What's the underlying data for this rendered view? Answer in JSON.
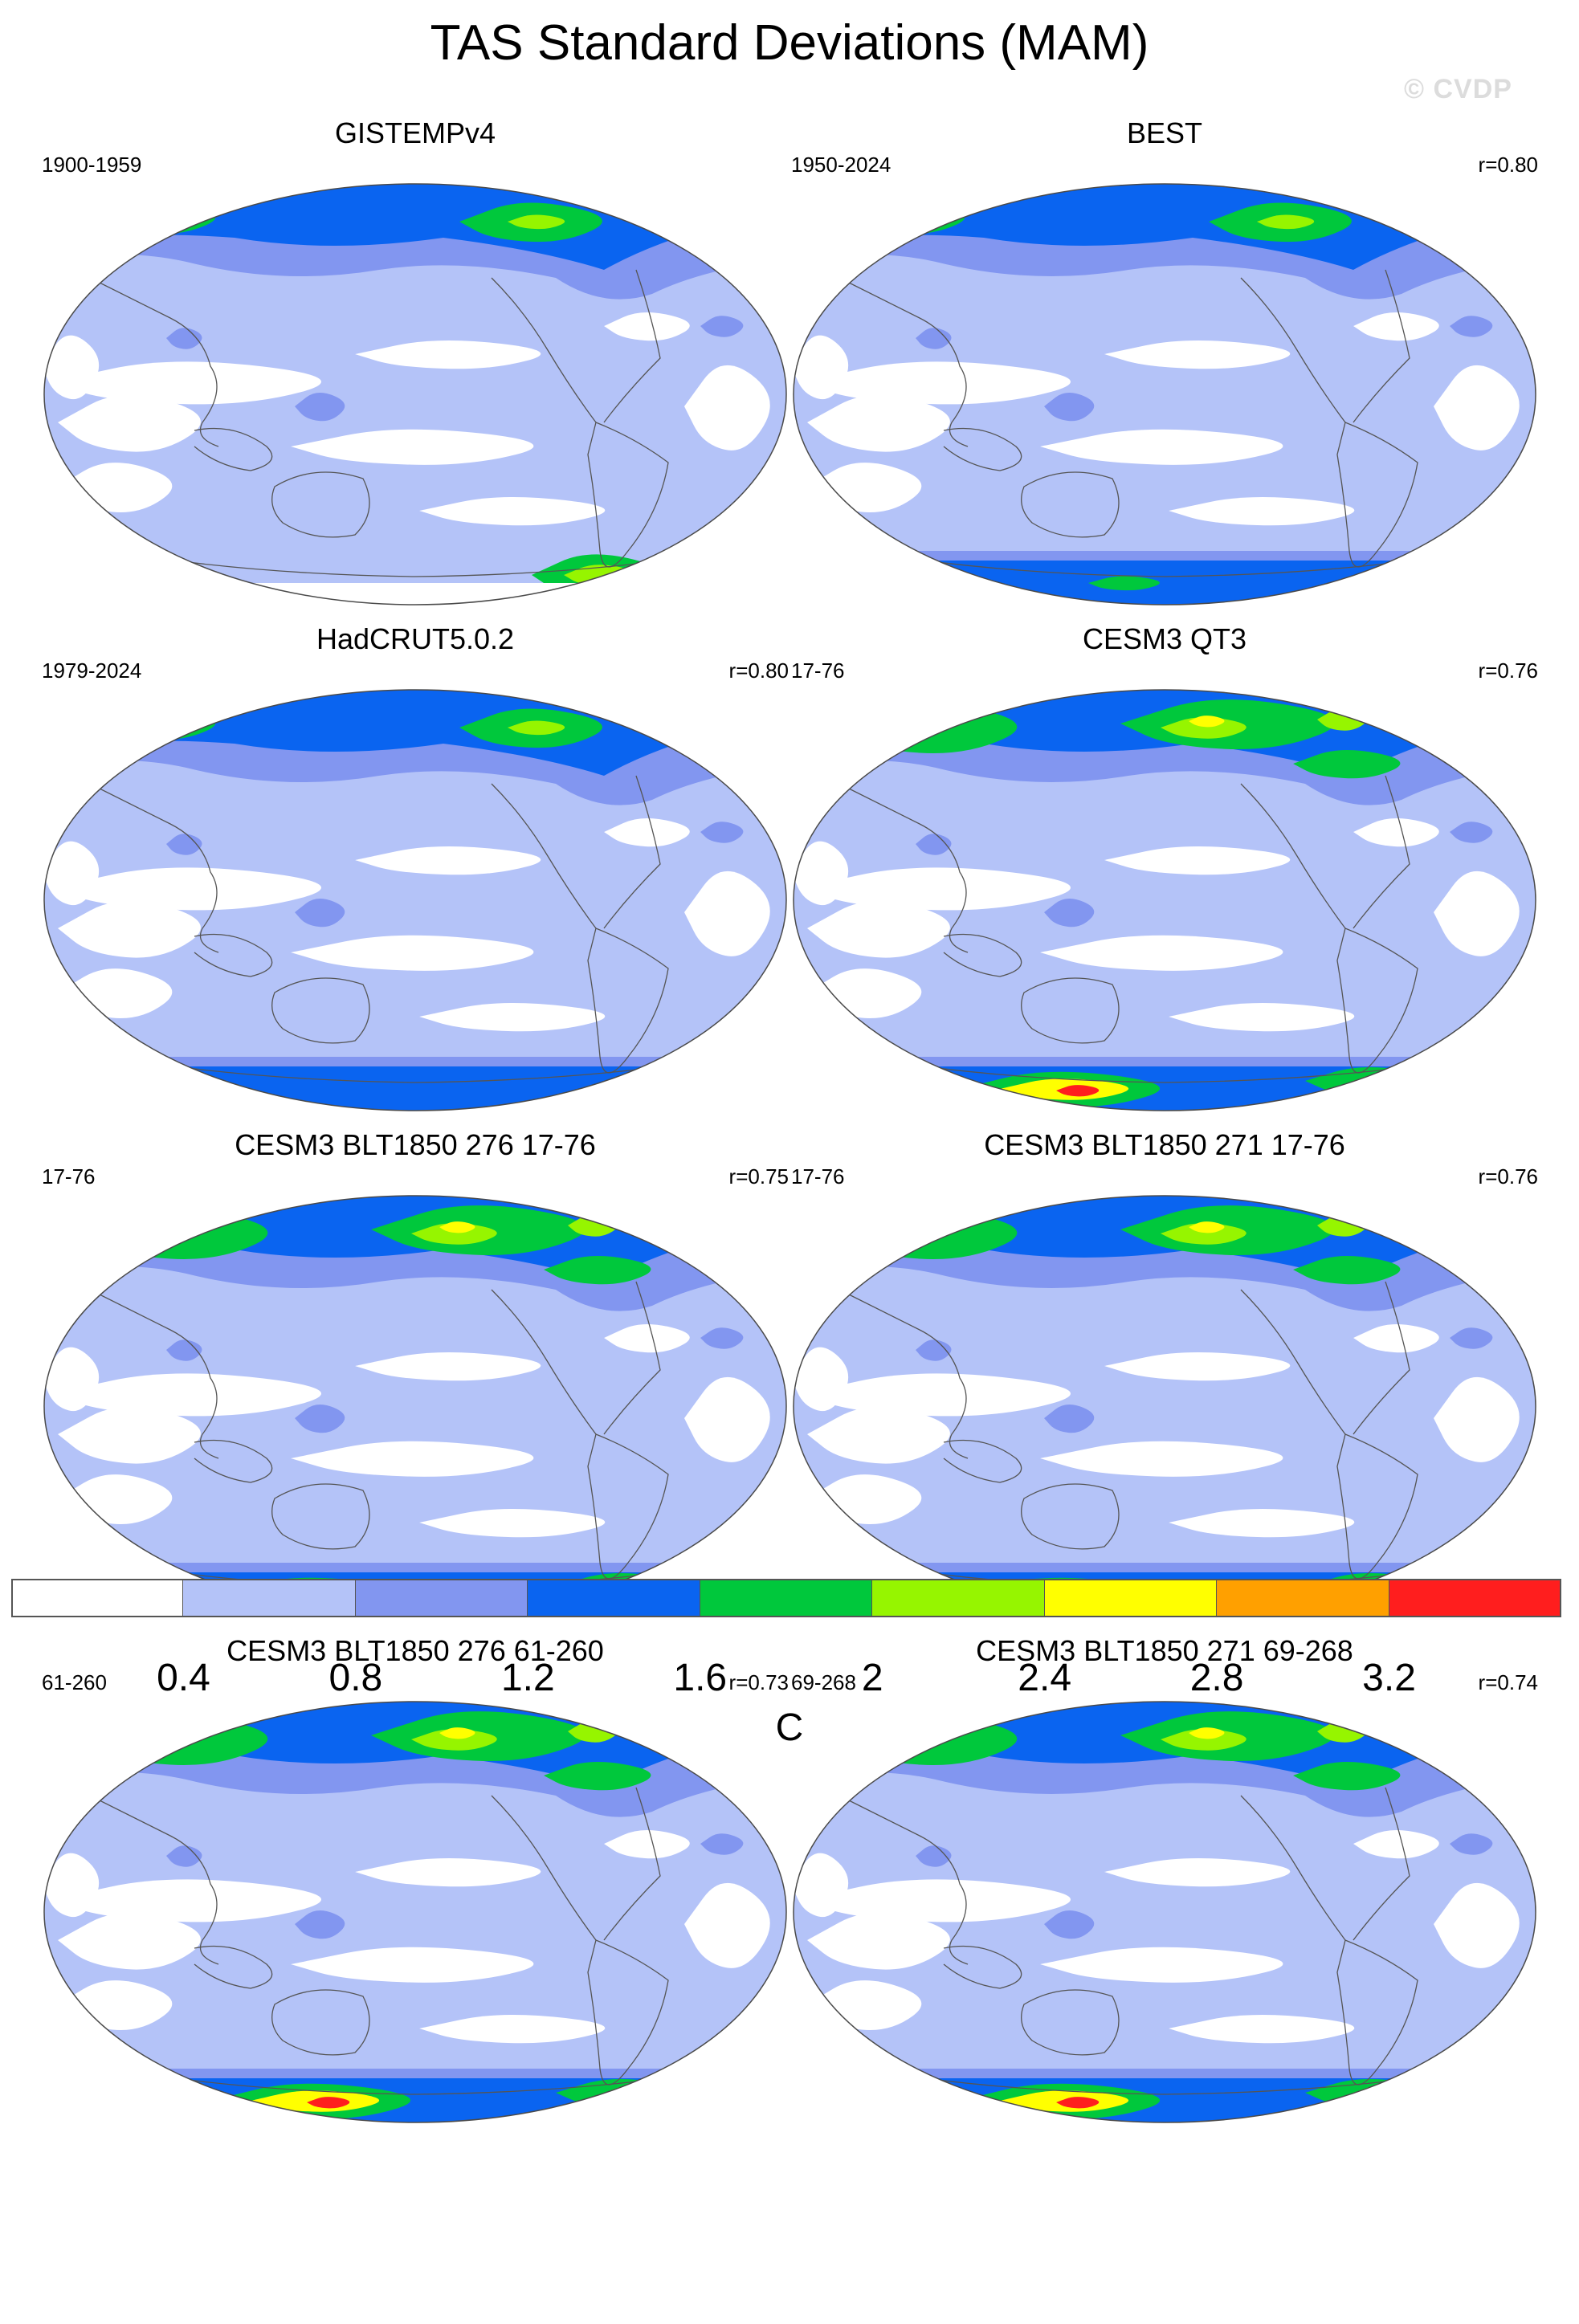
{
  "title": "TAS Standard Deviations (MAM)",
  "watermark": "© CVDP",
  "colors": {
    "levels": [
      "#ffffff",
      "#b4c3f8",
      "#8296f0",
      "#0a64f0",
      "#00c83c",
      "#96f500",
      "#ffff00",
      "#ffa000",
      "#ff1e1e"
    ],
    "coastline": "#555555",
    "outline": "#4a4a4a"
  },
  "panels": [
    {
      "title": "GISTEMPv4",
      "years": "1900-1959",
      "r": "",
      "map_kind": "obs-gistemp"
    },
    {
      "title": "BEST",
      "years": "1950-2024",
      "r": "r=0.80",
      "map_kind": "obs-best"
    },
    {
      "title": "HadCRUT5.0.2",
      "years": "1979-2024",
      "r": "r=0.80",
      "map_kind": "obs-hadcrut"
    },
    {
      "title": "CESM3 QT3",
      "years": "17-76",
      "r": "r=0.76",
      "map_kind": "model"
    },
    {
      "title": "CESM3 BLT1850 276 17-76",
      "years": "17-76",
      "r": "r=0.75",
      "map_kind": "model"
    },
    {
      "title": "CESM3 BLT1850 271 17-76",
      "years": "17-76",
      "r": "r=0.76",
      "map_kind": "model"
    },
    {
      "title": "CESM3 BLT1850 276 61-260",
      "years": "61-260",
      "r": "r=0.73",
      "map_kind": "model"
    },
    {
      "title": "CESM3 BLT1850 271 69-268",
      "years": "69-268",
      "r": "r=0.74",
      "map_kind": "model"
    }
  ],
  "colorbar": {
    "labels": [
      "0.4",
      "0.8",
      "1.2",
      "1.6",
      "2",
      "2.4",
      "2.8",
      "3.2"
    ],
    "unit": "C"
  }
}
